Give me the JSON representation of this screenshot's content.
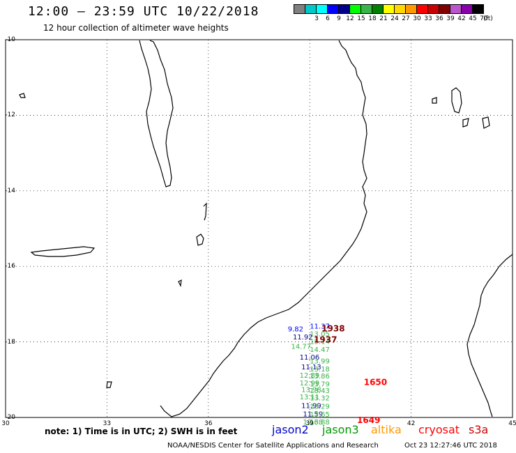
{
  "header": {
    "title": "12:00 – 23:59 UTC 10/22/2018",
    "subtitle": "12 hour collection of altimeter wave heights"
  },
  "colorbar": {
    "unit": "(ft)",
    "bins": [
      {
        "label": "",
        "color": "#808080"
      },
      {
        "label": "3",
        "color": "#00c8c8"
      },
      {
        "label": "6",
        "color": "#00ffff"
      },
      {
        "label": "9",
        "color": "#0000ff"
      },
      {
        "label": "12",
        "color": "#00008b"
      },
      {
        "label": "15",
        "color": "#00ff00"
      },
      {
        "label": "18",
        "color": "#3cb34a"
      },
      {
        "label": "21",
        "color": "#008000"
      },
      {
        "label": "24",
        "color": "#ffff00"
      },
      {
        "label": "27",
        "color": "#ffd700"
      },
      {
        "label": "30",
        "color": "#ff9900"
      },
      {
        "label": "33",
        "color": "#ff0000"
      },
      {
        "label": "36",
        "color": "#c80000"
      },
      {
        "label": "39",
        "color": "#800000"
      },
      {
        "label": "42",
        "color": "#bb55cc"
      },
      {
        "label": "45",
        "color": "#8800aa"
      },
      {
        "label": "70",
        "color": "#000000"
      }
    ]
  },
  "map": {
    "lon_range": [
      30,
      45
    ],
    "lat_range": [
      -20,
      -10
    ],
    "lat_ticks": [
      "-10",
      "-12",
      "-14",
      "-16",
      "-18",
      "-20"
    ],
    "lon_ticks": [
      "30",
      "33",
      "36",
      "39",
      "42",
      "45"
    ],
    "grid": "dotted"
  },
  "observations": [
    {
      "text": "11.37",
      "lon": 39.0,
      "lat": -17.65,
      "color": "#0000ff"
    },
    {
      "text": "9.82",
      "lon": 38.35,
      "lat": -17.72,
      "color": "#0000ff"
    },
    {
      "text": "13.05",
      "lon": 39.0,
      "lat": -17.85,
      "color": "#3cb34a"
    },
    {
      "text": "11.92",
      "lon": 38.5,
      "lat": -17.93,
      "color": "#00008b"
    },
    {
      "text": "15.14",
      "lon": 39.0,
      "lat": -18.05,
      "color": "#3cb34a"
    },
    {
      "text": "14.77",
      "lon": 38.45,
      "lat": -18.18,
      "color": "#3cb34a"
    },
    {
      "text": "14.47",
      "lon": 39.0,
      "lat": -18.27,
      "color": "#3cb34a"
    },
    {
      "text": "11.06",
      "lon": 38.7,
      "lat": -18.47,
      "color": "#00008b"
    },
    {
      "text": "13.99",
      "lon": 39.0,
      "lat": -18.57,
      "color": "#3cb34a"
    },
    {
      "text": "11.13",
      "lon": 38.75,
      "lat": -18.73,
      "color": "#00008b"
    },
    {
      "text": "13.18",
      "lon": 39.0,
      "lat": -18.78,
      "color": "#3cb34a"
    },
    {
      "text": "12.89",
      "lon": 38.7,
      "lat": -18.95,
      "color": "#3cb34a"
    },
    {
      "text": "13.86",
      "lon": 39.0,
      "lat": -18.97,
      "color": "#3cb34a"
    },
    {
      "text": "12.99",
      "lon": 38.7,
      "lat": -19.15,
      "color": "#3cb34a"
    },
    {
      "text": "13.79",
      "lon": 39.0,
      "lat": -19.18,
      "color": "#3cb34a"
    },
    {
      "text": "13.98",
      "lon": 38.75,
      "lat": -19.33,
      "color": "#3cb34a"
    },
    {
      "text": "13.43",
      "lon": 39.0,
      "lat": -19.35,
      "color": "#3cb34a"
    },
    {
      "text": "13.11",
      "lon": 38.7,
      "lat": -19.52,
      "color": "#3cb34a"
    },
    {
      "text": "13.32",
      "lon": 39.0,
      "lat": -19.55,
      "color": "#3cb34a"
    },
    {
      "text": "11.99",
      "lon": 38.75,
      "lat": -19.75,
      "color": "#00008b"
    },
    {
      "text": "13.29",
      "lon": 39.0,
      "lat": -19.77,
      "color": "#3cb34a"
    },
    {
      "text": "11.59",
      "lon": 38.8,
      "lat": -19.97,
      "color": "#00008b"
    },
    {
      "text": "13.65",
      "lon": 39.0,
      "lat": -19.98,
      "color": "#3cb34a"
    },
    {
      "text": "12.68",
      "lon": 38.8,
      "lat": -20.18,
      "color": "#3cb34a"
    },
    {
      "text": "13.88",
      "lon": 39.0,
      "lat": -20.18,
      "color": "#3cb34a"
    },
    {
      "text": "1938",
      "lon": 39.35,
      "lat": -17.72,
      "color": "#800000",
      "bold": true
    },
    {
      "text": "1937",
      "lon": 39.12,
      "lat": -18.02,
      "color": "#800000",
      "bold": true
    },
    {
      "text": "1650",
      "lon": 40.6,
      "lat": -19.14,
      "color": "#ff0000",
      "bold": true
    },
    {
      "text": "1649",
      "lon": 40.4,
      "lat": -20.15,
      "color": "#ff0000",
      "bold": true
    }
  ],
  "footer": {
    "note": "note: 1) Time is in UTC; 2) SWH is in feet",
    "satellites": [
      {
        "name": "jason2",
        "color": "#0000cc"
      },
      {
        "name": "jason3",
        "color": "#009900"
      },
      {
        "name": "altika",
        "color": "#ff9900"
      },
      {
        "name": "cryosat",
        "color": "#ff0000"
      },
      {
        "name": "s3a",
        "color": "#cc0000"
      }
    ],
    "credit": "NOAA/NESDIS Center for Satellite Applications and Research",
    "timestamp": "Oct 23 12:27:46 UTC 2018"
  }
}
